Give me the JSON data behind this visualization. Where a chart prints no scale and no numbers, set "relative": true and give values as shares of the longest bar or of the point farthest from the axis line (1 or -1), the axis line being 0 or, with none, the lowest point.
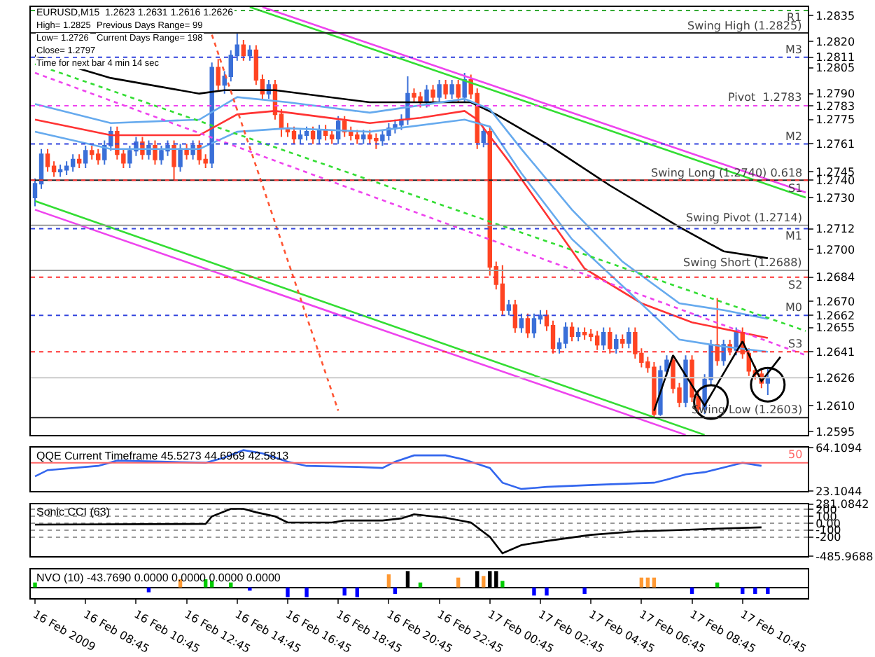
{
  "chart_data": [
    {
      "type": "candlestick",
      "title": "EURUSD,M15  1.2623 1.2631 1.2616 1.2626",
      "tick_labels": "y",
      "annotations": [
        "High= 1.2825",
        "Previous Days Range= 99",
        "Low= 1.2726",
        "Current Days Range= 198",
        "Close= 1.2797",
        "Time for next bar 4 min 14 sec"
      ],
      "colors": [
        "#3a6fd8",
        "#3a6fd8",
        "#ff4422",
        "#ff4422",
        "#3a6fd8",
        "#3a6fd8",
        "#3a6fd8",
        "#ff4422",
        "#3a6fd8",
        "#ff4422",
        "#ff4422",
        "#3a6fd8",
        "#3a6fd8",
        "#ff4422",
        "#ff4422",
        "#3a6fd8",
        "#3a6fd8",
        "#ff4422",
        "#3a6fd8",
        "#ff4422",
        "#3a6fd8",
        "#3a6fd8",
        "#ff4422",
        "#3a6fd8",
        "#ff4422",
        "#3a6fd8",
        "#ff4422",
        "#ff4422",
        "#3a6fd8",
        "#ff4422",
        "#3a6fd8",
        "#3a6fd8",
        "#3a6fd8",
        "#ff4422",
        "#3a6fd8",
        "#ff4422",
        "#ff4422",
        "#3a6fd8",
        "#ff4422",
        "#ff4422",
        "#ff4422",
        "#ff4422",
        "#3a6fd8",
        "#3a6fd8",
        "#ff4422",
        "#3a6fd8",
        "#ff4422",
        "#ff4422",
        "#3a6fd8",
        "#ff4422",
        "#ff4422",
        "#ff4422",
        "#3a6fd8",
        "#ff4422",
        "#ff4422",
        "#3a6fd8",
        "#3a6fd8",
        "#3a6fd8",
        "#3a6fd8",
        "#3a6fd8",
        "#ff4422",
        "#ff4422",
        "#3a6fd8",
        "#ff4422",
        "#3a6fd8",
        "#ff4422",
        "#3a6fd8",
        "#ff4422",
        "#3a6fd8",
        "#ff4422",
        "#ff4422",
        "#3a6fd8",
        "#ff4422",
        "#ff4422",
        "#ff4422",
        "#3a6fd8",
        "#ff4422",
        "#3a6fd8",
        "#ff4422",
        "#3a6fd8",
        "#3a6fd8",
        "#ff4422",
        "#ff4422",
        "#3a6fd8",
        "#3a6fd8",
        "#ff4422",
        "#3a6fd8",
        "#ff4422",
        "#ff4422",
        "#ff4422",
        "#3a6fd8",
        "#ff4422",
        "#3a6fd8",
        "#ff4422",
        "#3a6fd8",
        "#ff4422",
        "#ff4422",
        "#ff4422",
        "#ff4422",
        "#3a6fd8",
        "#3a6fd8",
        "#ff4422",
        "#ff4422",
        "#3a6fd8",
        "#ff4422",
        "#ff4422",
        "#3a6fd8",
        "#3a6fd8",
        "#ff4422",
        "#3a6fd8",
        "#ff4422",
        "#3a6fd8",
        "#ff4422",
        "#ff4422",
        "#ff4422",
        "#ff4422",
        "#3a6fd8"
      ],
      "xlim": [
        "2009-02-16T06:35",
        "2009-02-17T13:20"
      ],
      "ylim": [
        1.2593,
        1.284
      ],
      "yticks": [
        1.2835,
        {
          "value": 1.282,
          "label": "1.2820"
        },
        1.2811,
        1.2805,
        {
          "value": 1.279,
          "label": "1.2790"
        },
        1.2783,
        1.2775,
        1.2761,
        1.2745,
        {
          "value": 1.274,
          "label": "1.2740"
        },
        {
          "value": 1.273,
          "label": "1.2730"
        },
        1.2712,
        {
          "value": 1.27,
          "label": "1.2700"
        },
        1.2684,
        {
          "value": 1.267,
          "label": "1.2670"
        },
        1.2662,
        1.2655,
        1.2641,
        1.2626,
        {
          "value": 1.261,
          "label": "1.2610"
        },
        1.2595
      ],
      "x": [
        "2009-02-16T06:45",
        "2009-02-16T07:00",
        "2009-02-16T07:15",
        "2009-02-16T07:30",
        "2009-02-16T07:45",
        "2009-02-16T08:00",
        "2009-02-16T08:15",
        "2009-02-16T08:30",
        "2009-02-16T08:45",
        "2009-02-16T09:00",
        "2009-02-16T09:15",
        "2009-02-16T09:30",
        "2009-02-16T09:45",
        "2009-02-16T10:00",
        "2009-02-16T10:15",
        "2009-02-16T10:30",
        "2009-02-16T10:45",
        "2009-02-16T11:00",
        "2009-02-16T11:15",
        "2009-02-16T11:30",
        "2009-02-16T11:45",
        "2009-02-16T12:00",
        "2009-02-16T12:15",
        "2009-02-16T12:30",
        "2009-02-16T12:45",
        "2009-02-16T13:00",
        "2009-02-16T13:15",
        "2009-02-16T13:30",
        "2009-02-16T13:45",
        "2009-02-16T14:00",
        "2009-02-16T14:15",
        "2009-02-16T14:30",
        "2009-02-16T14:45",
        "2009-02-16T15:00",
        "2009-02-16T15:15",
        "2009-02-16T15:30",
        "2009-02-16T15:45",
        "2009-02-16T16:00",
        "2009-02-16T16:15",
        "2009-02-16T16:30",
        "2009-02-16T16:45",
        "2009-02-16T17:00",
        "2009-02-16T17:15",
        "2009-02-16T17:30",
        "2009-02-16T17:45",
        "2009-02-16T18:00",
        "2009-02-16T18:15",
        "2009-02-16T18:30",
        "2009-02-16T18:45",
        "2009-02-16T19:00",
        "2009-02-16T19:15",
        "2009-02-16T19:30",
        "2009-02-16T19:45",
        "2009-02-16T20:00",
        "2009-02-16T20:15",
        "2009-02-16T20:30",
        "2009-02-16T20:45",
        "2009-02-16T21:00",
        "2009-02-16T21:15",
        "2009-02-16T21:30",
        "2009-02-16T21:45",
        "2009-02-16T22:00",
        "2009-02-16T22:15",
        "2009-02-16T22:30",
        "2009-02-16T22:45",
        "2009-02-16T23:00",
        "2009-02-16T23:15",
        "2009-02-16T23:30",
        "2009-02-16T23:45",
        "2009-02-17T00:00",
        "2009-02-17T00:15",
        "2009-02-17T00:30",
        "2009-02-17T00:45",
        "2009-02-17T01:00",
        "2009-02-17T01:15",
        "2009-02-17T01:30",
        "2009-02-17T01:45",
        "2009-02-17T02:00",
        "2009-02-17T02:15",
        "2009-02-17T02:30",
        "2009-02-17T02:45",
        "2009-02-17T03:00",
        "2009-02-17T03:15",
        "2009-02-17T03:30",
        "2009-02-17T03:45",
        "2009-02-17T04:00",
        "2009-02-17T04:15",
        "2009-02-17T04:30",
        "2009-02-17T04:45",
        "2009-02-17T05:00",
        "2009-02-17T05:15",
        "2009-02-17T05:30",
        "2009-02-17T05:45",
        "2009-02-17T06:00",
        "2009-02-17T06:15",
        "2009-02-17T06:30",
        "2009-02-17T06:45",
        "2009-02-17T07:00",
        "2009-02-17T07:15",
        "2009-02-17T07:30",
        "2009-02-17T07:45",
        "2009-02-17T08:00",
        "2009-02-17T08:15",
        "2009-02-17T08:30",
        "2009-02-17T08:45",
        "2009-02-17T09:00",
        "2009-02-17T09:15",
        "2009-02-17T09:30",
        "2009-02-17T09:45",
        "2009-02-17T10:00",
        "2009-02-17T10:15",
        "2009-02-17T10:30",
        "2009-02-17T10:45",
        "2009-02-17T11:00",
        "2009-02-17T11:15",
        "2009-02-17T11:30",
        "2009-02-17T11:45"
      ],
      "ohlc": [
        [
          1.273,
          1.2741,
          1.2725,
          1.2738
        ],
        [
          1.2738,
          1.2758,
          1.2735,
          1.2755
        ],
        [
          1.2755,
          1.2758,
          1.2745,
          1.2748
        ],
        [
          1.2748,
          1.2751,
          1.2742,
          1.2745
        ],
        [
          1.2745,
          1.2749,
          1.2742,
          1.2746
        ],
        [
          1.2746,
          1.2751,
          1.2743,
          1.2748
        ],
        [
          1.2748,
          1.2755,
          1.2745,
          1.2752
        ],
        [
          1.2752,
          1.2755,
          1.2747,
          1.275
        ],
        [
          1.275,
          1.276,
          1.2747,
          1.2757
        ],
        [
          1.2757,
          1.276,
          1.2752,
          1.2755
        ],
        [
          1.2755,
          1.2758,
          1.2749,
          1.2752
        ],
        [
          1.2752,
          1.2763,
          1.2749,
          1.276
        ],
        [
          1.276,
          1.2771,
          1.2757,
          1.2768
        ],
        [
          1.2768,
          1.2771,
          1.2752,
          1.2755
        ],
        [
          1.2755,
          1.2758,
          1.2747,
          1.275
        ],
        [
          1.275,
          1.276,
          1.2747,
          1.2757
        ],
        [
          1.2757,
          1.2765,
          1.2754,
          1.2762
        ],
        [
          1.2762,
          1.2765,
          1.2752,
          1.2755
        ],
        [
          1.2755,
          1.2763,
          1.2752,
          1.276
        ],
        [
          1.276,
          1.2763,
          1.2749,
          1.2752
        ],
        [
          1.2752,
          1.276,
          1.2749,
          1.2757
        ],
        [
          1.2757,
          1.2763,
          1.2754,
          1.276
        ],
        [
          1.276,
          1.2763,
          1.274,
          1.2748
        ],
        [
          1.2748,
          1.2761,
          1.2745,
          1.2758
        ],
        [
          1.2758,
          1.2761,
          1.2752,
          1.2755
        ],
        [
          1.2755,
          1.2763,
          1.2752,
          1.276
        ],
        [
          1.276,
          1.2763,
          1.2749,
          1.2752
        ],
        [
          1.2752,
          1.2755,
          1.2747,
          1.275
        ],
        [
          1.275,
          1.2808,
          1.2747,
          1.2805
        ],
        [
          1.2805,
          1.281,
          1.2792,
          1.2795
        ],
        [
          1.2795,
          1.2803,
          1.279,
          1.28
        ],
        [
          1.28,
          1.2815,
          1.2797,
          1.2812
        ],
        [
          1.2812,
          1.2825,
          1.2809,
          1.2818
        ],
        [
          1.2818,
          1.2821,
          1.2809,
          1.2812
        ],
        [
          1.2812,
          1.2818,
          1.2809,
          1.2815
        ],
        [
          1.2815,
          1.2818,
          1.2795,
          1.2798
        ],
        [
          1.2798,
          1.2801,
          1.2787,
          1.279
        ],
        [
          1.279,
          1.2798,
          1.2787,
          1.2795
        ],
        [
          1.2795,
          1.2798,
          1.2775,
          1.2778
        ],
        [
          1.2778,
          1.2781,
          1.2765,
          1.277
        ],
        [
          1.277,
          1.2773,
          1.2765,
          1.2768
        ],
        [
          1.2768,
          1.2771,
          1.2761,
          1.2764
        ],
        [
          1.2764,
          1.2769,
          1.2761,
          1.2766
        ],
        [
          1.2766,
          1.2771,
          1.2763,
          1.2768
        ],
        [
          1.2768,
          1.2771,
          1.2761,
          1.2764
        ],
        [
          1.2764,
          1.2772,
          1.2761,
          1.2769
        ],
        [
          1.2769,
          1.2772,
          1.2763,
          1.2766
        ],
        [
          1.2766,
          1.2769,
          1.2761,
          1.2764
        ],
        [
          1.2764,
          1.2777,
          1.2761,
          1.2774
        ],
        [
          1.2774,
          1.2777,
          1.2765,
          1.2768
        ],
        [
          1.2768,
          1.2771,
          1.2763,
          1.2766
        ],
        [
          1.2766,
          1.2769,
          1.2761,
          1.2764
        ],
        [
          1.2764,
          1.2769,
          1.2761,
          1.2766
        ],
        [
          1.2766,
          1.2769,
          1.2761,
          1.2764
        ],
        [
          1.2764,
          1.2767,
          1.2758,
          1.2763
        ],
        [
          1.2763,
          1.2769,
          1.276,
          1.2766
        ],
        [
          1.2766,
          1.2773,
          1.2763,
          1.277
        ],
        [
          1.277,
          1.2775,
          1.2767,
          1.2772
        ],
        [
          1.2772,
          1.2778,
          1.2769,
          1.2775
        ],
        [
          1.2775,
          1.28,
          1.2772,
          1.279
        ],
        [
          1.279,
          1.2793,
          1.2785,
          1.2788
        ],
        [
          1.2788,
          1.2791,
          1.2782,
          1.2785
        ],
        [
          1.2785,
          1.2795,
          1.2782,
          1.2792
        ],
        [
          1.2792,
          1.2795,
          1.2785,
          1.2788
        ],
        [
          1.2788,
          1.2798,
          1.2785,
          1.2795
        ],
        [
          1.2795,
          1.2798,
          1.2787,
          1.279
        ],
        [
          1.279,
          1.2798,
          1.2787,
          1.2795
        ],
        [
          1.2795,
          1.2798,
          1.2785,
          1.2788
        ],
        [
          1.2788,
          1.2802,
          1.2785,
          1.2798
        ],
        [
          1.2798,
          1.2801,
          1.2787,
          1.279
        ],
        [
          1.279,
          1.2793,
          1.2758,
          1.2762
        ],
        [
          1.2762,
          1.2771,
          1.2759,
          1.2768
        ],
        [
          1.2768,
          1.2771,
          1.2685,
          1.269
        ],
        [
          1.269,
          1.2693,
          1.2677,
          1.268
        ],
        [
          1.268,
          1.2691,
          1.2662,
          1.2665
        ],
        [
          1.2665,
          1.2671,
          1.2662,
          1.2668
        ],
        [
          1.2668,
          1.2671,
          1.2652,
          1.2655
        ],
        [
          1.2655,
          1.2663,
          1.2652,
          1.266
        ],
        [
          1.266,
          1.2663,
          1.2649,
          1.2652
        ],
        [
          1.2652,
          1.2663,
          1.2649,
          1.266
        ],
        [
          1.266,
          1.2665,
          1.2657,
          1.2662
        ],
        [
          1.2662,
          1.2665,
          1.2653,
          1.2656
        ],
        [
          1.2656,
          1.2659,
          1.264,
          1.2643
        ],
        [
          1.2643,
          1.2649,
          1.264,
          1.2646
        ],
        [
          1.2646,
          1.2658,
          1.2643,
          1.2655
        ],
        [
          1.2655,
          1.2658,
          1.2647,
          1.265
        ],
        [
          1.265,
          1.2655,
          1.2647,
          1.2652
        ],
        [
          1.2652,
          1.2655,
          1.2648,
          1.2651
        ],
        [
          1.2651,
          1.2654,
          1.2647,
          1.265
        ],
        [
          1.265,
          1.2653,
          1.2642,
          1.2645
        ],
        [
          1.2645,
          1.2655,
          1.2642,
          1.2652
        ],
        [
          1.2652,
          1.2655,
          1.264,
          1.2643
        ],
        [
          1.2643,
          1.2651,
          1.264,
          1.2648
        ],
        [
          1.2648,
          1.2651,
          1.2643,
          1.2646
        ],
        [
          1.2646,
          1.2655,
          1.2643,
          1.2652
        ],
        [
          1.2652,
          1.2655,
          1.2637,
          1.264
        ],
        [
          1.264,
          1.2643,
          1.2632,
          1.2635
        ],
        [
          1.2635,
          1.2638,
          1.2629,
          1.2632
        ],
        [
          1.2632,
          1.2635,
          1.2603,
          1.2605
        ],
        [
          1.2605,
          1.2633,
          1.2604,
          1.263
        ],
        [
          1.263,
          1.2639,
          1.2627,
          1.2636
        ],
        [
          1.2636,
          1.2639,
          1.2617,
          1.262
        ],
        [
          1.262,
          1.2623,
          1.2609,
          1.2612
        ],
        [
          1.2612,
          1.2639,
          1.2609,
          1.2636
        ],
        [
          1.2636,
          1.2639,
          1.2612,
          1.2615
        ],
        [
          1.2615,
          1.2618,
          1.2605,
          1.2608
        ],
        [
          1.2608,
          1.2628,
          1.2605,
          1.2625
        ],
        [
          1.2625,
          1.2648,
          1.2622,
          1.2645
        ],
        [
          1.2645,
          1.2672,
          1.2633,
          1.2636
        ],
        [
          1.2636,
          1.2648,
          1.2633,
          1.2645
        ],
        [
          1.2645,
          1.2648,
          1.2639,
          1.2642
        ],
        [
          1.2642,
          1.2655,
          1.2639,
          1.2652
        ],
        [
          1.2652,
          1.2655,
          1.2637,
          1.264
        ],
        [
          1.264,
          1.2643,
          1.2627,
          1.263
        ],
        [
          1.263,
          1.2633,
          1.2625,
          1.2628
        ],
        [
          1.2628,
          1.2631,
          1.262,
          1.2623
        ],
        [
          1.2623,
          1.2631,
          1.2616,
          1.2626
        ]
      ],
      "series": [
        {
          "type": "line",
          "color": "#000000",
          "line_style": "solid",
          "x": [
            "2009-02-16T06:45",
            "2009-02-16T09:45",
            "2009-02-16T13:15",
            "2009-02-16T14:15",
            "2009-02-16T16:15",
            "2009-02-16T20:00",
            "2009-02-16T22:30",
            "2009-02-17T00:00",
            "2009-02-17T01:00",
            "2009-02-17T03:00",
            "2009-02-17T05:30",
            "2009-02-17T08:15",
            "2009-02-17T10:00",
            "2009-02-17T11:45"
          ],
          "values": [
            1.2812,
            1.2799,
            1.279,
            1.2792,
            1.2792,
            1.2785,
            1.2785,
            1.2785,
            1.2778,
            1.2761,
            1.2737,
            1.2713,
            1.2699,
            1.2695
          ]
        },
        {
          "type": "line",
          "color": "#ff3333",
          "line_style": "solid",
          "x": [
            "2009-02-16T06:45",
            "2009-02-16T09:45",
            "2009-02-16T13:15",
            "2009-02-16T14:45",
            "2009-02-16T16:15",
            "2009-02-16T20:00",
            "2009-02-16T22:00",
            "2009-02-16T23:45",
            "2009-02-17T00:15",
            "2009-02-17T01:30",
            "2009-02-17T03:00",
            "2009-02-17T04:30",
            "2009-02-17T06:45",
            "2009-02-17T08:45",
            "2009-02-17T11:45"
          ],
          "values": [
            1.2775,
            1.2766,
            1.2766,
            1.2778,
            1.278,
            1.2773,
            1.2776,
            1.278,
            1.2775,
            1.2751,
            1.272,
            1.2689,
            1.2669,
            1.2658,
            1.2649
          ]
        },
        {
          "type": "line",
          "color": "#66aaee",
          "line_style": "solid",
          "x": [
            "2009-02-16T06:45",
            "2009-02-16T09:45",
            "2009-02-16T13:15",
            "2009-02-16T14:45",
            "2009-02-16T16:45",
            "2009-02-16T20:00",
            "2009-02-16T23:45",
            "2009-02-17T00:45",
            "2009-02-17T02:00",
            "2009-02-17T04:00",
            "2009-02-17T06:00",
            "2009-02-17T08:15",
            "2009-02-17T10:00",
            "2009-02-17T11:45"
          ],
          "values": [
            1.2784,
            1.2773,
            1.2775,
            1.2788,
            1.2785,
            1.2779,
            1.2787,
            1.2781,
            1.2758,
            1.2723,
            1.2693,
            1.2669,
            1.2665,
            1.266
          ]
        },
        {
          "type": "line",
          "color": "#66aaee",
          "line_style": "solid",
          "x": [
            "2009-02-16T06:45",
            "2009-02-16T09:45",
            "2009-02-16T13:15",
            "2009-02-16T14:45",
            "2009-02-16T16:45",
            "2009-02-16T20:00",
            "2009-02-16T23:45",
            "2009-02-17T00:45",
            "2009-02-17T02:00",
            "2009-02-17T04:00",
            "2009-02-17T06:00",
            "2009-02-17T08:15",
            "2009-02-17T10:00",
            "2009-02-17T11:45"
          ],
          "values": [
            1.2768,
            1.2758,
            1.2758,
            1.2768,
            1.277,
            1.2768,
            1.2775,
            1.2771,
            1.2744,
            1.2706,
            1.2679,
            1.2648,
            1.2644,
            1.2641
          ]
        },
        {
          "type": "line",
          "color": "#33dd33",
          "line_style": "solid",
          "x": [
            "2009-02-16T15:15",
            "2009-02-17T13:15"
          ],
          "values": [
            1.284,
            1.273
          ]
        },
        {
          "type": "line",
          "color": "#ee44ee",
          "line_style": "solid",
          "x": [
            "2009-02-16T15:45",
            "2009-02-17T13:15"
          ],
          "values": [
            1.284,
            1.2733
          ]
        },
        {
          "type": "line",
          "color": "#33dd33",
          "line_style": "solid",
          "x": [
            "2009-02-16T06:45",
            "2009-02-17T09:15"
          ],
          "values": [
            1.2728,
            1.2593
          ]
        },
        {
          "type": "line",
          "color": "#ee44ee",
          "line_style": "solid",
          "x": [
            "2009-02-16T06:45",
            "2009-02-17T08:30"
          ],
          "values": [
            1.2723,
            1.2593
          ]
        },
        {
          "type": "line",
          "color": "#33dd33",
          "line_style": "dotted",
          "x": [
            "2009-02-16T06:45",
            "2009-02-17T13:15"
          ],
          "values": [
            1.2807,
            1.2653
          ]
        },
        {
          "type": "line",
          "color": "#ee44ee",
          "line_style": "dotted",
          "x": [
            "2009-02-16T06:45",
            "2009-02-17T13:15"
          ],
          "values": [
            1.2802,
            1.2639
          ]
        },
        {
          "type": "line",
          "color": "#ff5533",
          "line_style": "dotted",
          "x": [
            "2009-02-16T13:45",
            "2009-02-16T18:45"
          ],
          "values": [
            1.2824,
            1.2607
          ]
        },
        {
          "type": "line",
          "color": "#000000",
          "line_style": "solid",
          "x": [
            "2009-02-17T07:15",
            "2009-02-17T08:00",
            "2009-02-17T09:15",
            "2009-02-17T10:45",
            "2009-02-17T11:30",
            "2009-02-17T12:15"
          ],
          "values": [
            1.2607,
            1.2639,
            1.261,
            1.2647,
            1.2624,
            1.2638
          ]
        },
        {
          "type": "scatter",
          "color": "#000000",
          "marker": "circle",
          "x": [
            "2009-02-17T09:30",
            "2009-02-17T11:45"
          ],
          "values": [
            1.2612,
            1.2622
          ]
        }
      ],
      "ref_lines": [
        {
          "axis": "y",
          "value": 1.2838,
          "label": "R1",
          "color": "#33aa33",
          "line_style": "dotted"
        },
        {
          "axis": "y",
          "value": 1.2825,
          "label": "Swing High (1.2825)",
          "color": "#222222",
          "line_style": "solid"
        },
        {
          "axis": "y",
          "value": 1.2811,
          "label": "M3",
          "color": "#3344dd",
          "line_style": "dotted"
        },
        {
          "axis": "y",
          "value": 1.2783,
          "label": "Pivot  1.2783",
          "color": "#ee44ee",
          "line_style": "dotted"
        },
        {
          "axis": "y",
          "value": 1.2761,
          "label": "M2",
          "color": "#3344dd",
          "line_style": "dotted"
        },
        {
          "axis": "y",
          "value": 1.274,
          "label": "Swing Long (1.2740) 0.618",
          "color": "#222222",
          "line_style": "solid"
        },
        {
          "axis": "y",
          "value": 1.274,
          "label": "S1",
          "color": "#ff3333",
          "line_style": "dotted"
        },
        {
          "axis": "y",
          "value": 1.2714,
          "label": "Swing Pivot (1.2714)",
          "color": "#999999",
          "line_style": "solid"
        },
        {
          "axis": "y",
          "value": 1.2712,
          "label": "M1",
          "color": "#3344dd",
          "line_style": "dotted"
        },
        {
          "axis": "y",
          "value": 1.2688,
          "label": "Swing Short (1.2688)",
          "color": "#999999",
          "line_style": "solid"
        },
        {
          "axis": "y",
          "value": 1.2684,
          "label": "S2",
          "color": "#ff3333",
          "line_style": "dotted"
        },
        {
          "axis": "y",
          "value": 1.2662,
          "label": "M0",
          "color": "#3344dd",
          "line_style": "dotted"
        },
        {
          "axis": "y",
          "value": 1.2641,
          "label": "S3",
          "color": "#ff3333",
          "line_style": "dotted"
        },
        {
          "axis": "y",
          "value": 1.2626,
          "label": null,
          "color": "#cccccc",
          "line_style": "solid"
        },
        {
          "axis": "y",
          "value": 1.2603,
          "label": "Swing Low (1.2603)",
          "color": "#222222",
          "line_style": "solid"
        }
      ]
    },
    {
      "type": "line",
      "title": "QQE Current Timeframe 45.5273 44.6969 42.5813",
      "tick_labels": "y",
      "color": "#3366ee",
      "xlim": [
        "2009-02-16T06:35",
        "2009-02-17T13:20"
      ],
      "ylim": [
        23.1044,
        64.1094
      ],
      "yticks": [
        64.1094,
        23.1044
      ],
      "x": [
        "2009-02-16T06:45",
        "2009-02-16T07:15",
        "2009-02-16T09:15",
        "2009-02-16T10:00",
        "2009-02-16T11:45",
        "2009-02-16T13:30",
        "2009-02-16T14:15",
        "2009-02-16T15:00",
        "2009-02-16T15:45",
        "2009-02-16T16:45",
        "2009-02-16T17:30",
        "2009-02-16T19:30",
        "2009-02-16T20:30",
        "2009-02-16T21:00",
        "2009-02-16T21:45",
        "2009-02-16T23:00",
        "2009-02-16T23:45",
        "2009-02-17T00:45",
        "2009-02-17T01:15",
        "2009-02-17T02:00",
        "2009-02-17T03:00",
        "2009-02-17T05:00",
        "2009-02-17T07:15",
        "2009-02-17T07:45",
        "2009-02-17T08:30",
        "2009-02-17T09:15",
        "2009-02-17T10:15",
        "2009-02-17T10:45",
        "2009-02-17T11:30"
      ],
      "values": [
        37,
        43,
        47,
        52,
        51,
        50,
        55,
        62,
        59,
        51,
        47,
        46,
        45,
        51,
        57,
        57,
        53,
        45,
        31,
        25,
        27,
        29,
        31,
        34,
        39,
        41,
        47,
        50,
        47
      ],
      "ref_lines": [
        {
          "axis": "y",
          "value": 50,
          "label": "50",
          "color": "#ff6666",
          "line_style": "solid"
        }
      ]
    },
    {
      "type": "line",
      "title": "Sonic CCI (63)",
      "tick_labels": "y",
      "color": "#000000",
      "grid": "y",
      "xlim": [
        "2009-02-16T06:35",
        "2009-02-17T13:20"
      ],
      "ylim": [
        -485.9688,
        281.0842
      ],
      "yticks": [
        281.0842,
        200,
        100,
        {
          "value": 0,
          "label": "0.00"
        },
        -100,
        -200,
        -485.9688
      ],
      "x": [
        "2009-02-16T06:45",
        "2009-02-16T13:30",
        "2009-02-16T13:45",
        "2009-02-16T14:30",
        "2009-02-16T15:00",
        "2009-02-16T15:30",
        "2009-02-16T16:15",
        "2009-02-16T16:45",
        "2009-02-16T18:30",
        "2009-02-16T19:00",
        "2009-02-16T20:30",
        "2009-02-16T21:15",
        "2009-02-16T21:45",
        "2009-02-16T23:00",
        "2009-02-17T00:00",
        "2009-02-17T00:45",
        "2009-02-17T01:15",
        "2009-02-17T02:00",
        "2009-02-17T03:00",
        "2009-02-17T04:45",
        "2009-02-17T06:30",
        "2009-02-17T08:15",
        "2009-02-17T09:45",
        "2009-02-17T11:30"
      ],
      "values": [
        -20,
        -10,
        100,
        210,
        210,
        160,
        100,
        10,
        10,
        40,
        40,
        70,
        130,
        80,
        10,
        -200,
        -440,
        -320,
        -260,
        -170,
        -120,
        -100,
        -80,
        -60
      ]
    },
    {
      "type": "bar",
      "title": "NVO (10) -43.7690 0.0000 0.0000 0.0000 0.0000",
      "relative": true,
      "xlim": [
        "2009-02-16T06:35",
        "2009-02-17T13:20"
      ],
      "xticks": [
        {
          "value": "2009-02-16T06:45",
          "label": "16 Feb 2009"
        },
        {
          "value": "2009-02-16T08:45",
          "label": "16 Feb 08:45"
        },
        {
          "value": "2009-02-16T10:45",
          "label": "16 Feb 10:45"
        },
        {
          "value": "2009-02-16T12:45",
          "label": "16 Feb 12:45"
        },
        {
          "value": "2009-02-16T14:45",
          "label": "16 Feb 14:45"
        },
        {
          "value": "2009-02-16T16:45",
          "label": "16 Feb 16:45"
        },
        {
          "value": "2009-02-16T18:45",
          "label": "16 Feb 18:45"
        },
        {
          "value": "2009-02-16T20:45",
          "label": "16 Feb 20:45"
        },
        {
          "value": "2009-02-16T22:45",
          "label": "16 Feb 22:45"
        },
        {
          "value": "2009-02-17T00:45",
          "label": "17 Feb 00:45"
        },
        {
          "value": "2009-02-17T02:45",
          "label": "17 Feb 02:45"
        },
        {
          "value": "2009-02-17T04:45",
          "label": "17 Feb 04:45"
        },
        {
          "value": "2009-02-17T06:45",
          "label": "17 Feb 06:45"
        },
        {
          "value": "2009-02-17T08:45",
          "label": "17 Feb 08:45"
        },
        {
          "value": "2009-02-17T10:45",
          "label": "17 Feb 10:45"
        }
      ],
      "x": [
        "2009-02-16T06:45",
        "2009-02-16T11:15",
        "2009-02-16T12:30",
        "2009-02-16T13:30",
        "2009-02-16T13:45",
        "2009-02-16T14:30",
        "2009-02-16T15:15",
        "2009-02-16T16:45",
        "2009-02-16T17:30",
        "2009-02-16T19:00",
        "2009-02-16T19:30",
        "2009-02-16T20:45",
        "2009-02-16T21:00",
        "2009-02-16T21:30",
        "2009-02-16T22:00",
        "2009-02-16T23:30",
        "2009-02-17T00:15",
        "2009-02-17T00:30",
        "2009-02-17T00:45",
        "2009-02-17T01:00",
        "2009-02-17T01:15",
        "2009-02-17T02:30",
        "2009-02-17T03:00",
        "2009-02-17T04:30",
        "2009-02-17T06:45",
        "2009-02-17T07:00",
        "2009-02-17T07:15",
        "2009-02-17T08:45",
        "2009-02-17T09:45",
        "2009-02-17T10:45",
        "2009-02-17T11:15",
        "2009-02-17T11:45"
      ],
      "values": [
        0.3,
        -0.3,
        0.5,
        0.5,
        0.4,
        0.3,
        -0.2,
        -0.6,
        -0.6,
        -0.5,
        -0.6,
        0.8,
        -0.4,
        1.0,
        0.3,
        0.6,
        1.0,
        0.7,
        1.0,
        1.0,
        0.4,
        -0.5,
        -0.5,
        -0.4,
        0.6,
        0.6,
        0.6,
        -0.4,
        0.3,
        -0.4,
        -0.4,
        -0.4
      ],
      "colors": [
        "#00cc00",
        "#0000ff",
        "#ff9933",
        "#00cc00",
        "#00cc00",
        "#00cc00",
        "#0000ff",
        "#0000ff",
        "#0000ff",
        "#0000ff",
        "#0000ff",
        "#ff9933",
        "#0000ff",
        "#000000",
        "#00cc00",
        "#ff9933",
        "#000000",
        "#ff9933",
        "#000000",
        "#000000",
        "#00cc00",
        "#0000ff",
        "#0000ff",
        "#0000ff",
        "#ff9933",
        "#ff9933",
        "#ff9933",
        "#0000ff",
        "#00cc00",
        "#0000ff",
        "#0000ff",
        "#0000ff"
      ]
    }
  ]
}
